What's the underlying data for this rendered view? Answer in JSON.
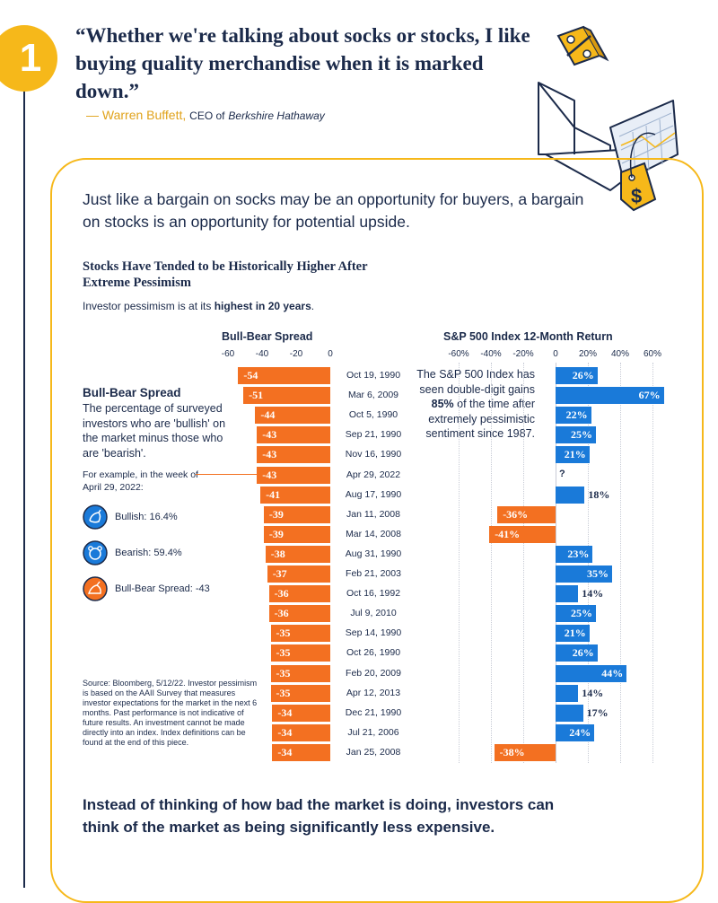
{
  "badge_number": "1",
  "quote": "“Whether we're talking about socks or stocks, I like buying quality merchandise when it is marked down.”",
  "attribution": {
    "dash_name": "— Warren Buffett,",
    "role": "CEO of",
    "company": "Berkshire Hathaway"
  },
  "intro": "Just like a bargain on socks may be an opportunity for buyers, a bargain on stocks is an opportunity for potential upside.",
  "chart_title": "Stocks Have Tended to be Historically Higher After Extreme Pessimism",
  "subtitle": {
    "prefix": "Investor pessimism is at its ",
    "bold": "highest in 20 years",
    "suffix": "."
  },
  "legend": {
    "title": "Bull-Bear Spread",
    "description": "The percentage of surveyed investors who are 'bullish' on the market minus those who are 'bearish'.",
    "example": "For example, in the week of April 29, 2022:",
    "items": [
      {
        "label": "Bullish: 16.4%",
        "color": "#1a7ad9"
      },
      {
        "label": "Bearish: 59.4%",
        "color": "#1a7ad9"
      },
      {
        "label": "Bull-Bear Spread: -43",
        "color": "#f37021"
      }
    ]
  },
  "sp_note": "The S&P 500 Index has seen double-digit gains 85% of the time after extremely pessimistic sentiment since 1987.",
  "source": "Source: Bloomberg, 5/12/22. Investor pessimism is based on the AAII Survey that measures investor expectations for the market in the next 6 months. Past performance is not indicative of future results. An investment cannot be made directly into an index. Index definitions can be found at the end of this piece.",
  "bottom_text": "Instead of thinking of how bad the market is doing, investors can think of the market as being significantly less expensive.",
  "colors": {
    "navy": "#1b2a4a",
    "orange": "#f37021",
    "blue": "#1a7ad9",
    "gold": "#f6b81a"
  },
  "chart_data": [
    {
      "type": "bar",
      "orientation": "horizontal",
      "title": "Bull-Bear Spread",
      "xlim": [
        -60,
        0
      ],
      "ticks": [
        "-60",
        "-40",
        "-20",
        "0"
      ],
      "tick_values": [
        -60,
        -40,
        -20,
        0
      ],
      "categories": [
        "Oct 19, 1990",
        "Mar 6, 2009",
        "Oct 5, 1990",
        "Sep 21, 1990",
        "Nov 16, 1990",
        "Apr 29, 2022",
        "Aug 17, 1990",
        "Jan 11, 2008",
        "Mar 14, 2008",
        "Aug 31, 1990",
        "Feb 21, 2003",
        "Oct 16, 1992",
        "Jul 9, 2010",
        "Sep 14, 1990",
        "Oct 26, 1990",
        "Feb 20, 2009",
        "Apr 12, 2013",
        "Dec 21, 1990",
        "Jul 21, 2006",
        "Jan 25, 2008"
      ],
      "values": [
        -54,
        -51,
        -44,
        -43,
        -43,
        -43,
        -41,
        -39,
        -39,
        -38,
        -37,
        -36,
        -36,
        -35,
        -35,
        -35,
        -35,
        -34,
        -34,
        -34
      ],
      "labels": [
        "-54",
        "-51",
        "-44",
        "-43",
        "-43",
        "-43",
        "-41",
        "-39",
        "-39",
        "-38",
        "-37",
        "-36",
        "-36",
        "-35",
        "-35",
        "-35",
        "-35",
        "-34",
        "-34",
        "-34"
      ]
    },
    {
      "type": "bar",
      "orientation": "horizontal",
      "title": "S&P 500 Index 12-Month Return",
      "xlim": [
        -60,
        70
      ],
      "ticks": [
        "-60%",
        "-40%",
        "-20%",
        "0",
        "20%",
        "40%",
        "60%"
      ],
      "tick_values": [
        -60,
        -40,
        -20,
        0,
        20,
        40,
        60
      ],
      "categories": [
        "Oct 19, 1990",
        "Mar 6, 2009",
        "Oct 5, 1990",
        "Sep 21, 1990",
        "Nov 16, 1990",
        "Apr 29, 2022",
        "Aug 17, 1990",
        "Jan 11, 2008",
        "Mar 14, 2008",
        "Aug 31, 1990",
        "Feb 21, 2003",
        "Oct 16, 1992",
        "Jul 9, 2010",
        "Sep 14, 1990",
        "Oct 26, 1990",
        "Feb 20, 2009",
        "Apr 12, 2013",
        "Dec 21, 1990",
        "Jul 21, 2006",
        "Jan 25, 2008"
      ],
      "values": [
        26,
        67,
        22,
        25,
        21,
        null,
        18,
        -36,
        -41,
        23,
        35,
        14,
        25,
        21,
        26,
        44,
        14,
        17,
        24,
        -38
      ],
      "labels": [
        "26%",
        "67%",
        "22%",
        "25%",
        "21%",
        "?",
        "18%",
        "-36%",
        "-41%",
        "23%",
        "35%",
        "14%",
        "25%",
        "21%",
        "26%",
        "44%",
        "14%",
        "17%",
        "24%",
        "-38%"
      ]
    }
  ]
}
